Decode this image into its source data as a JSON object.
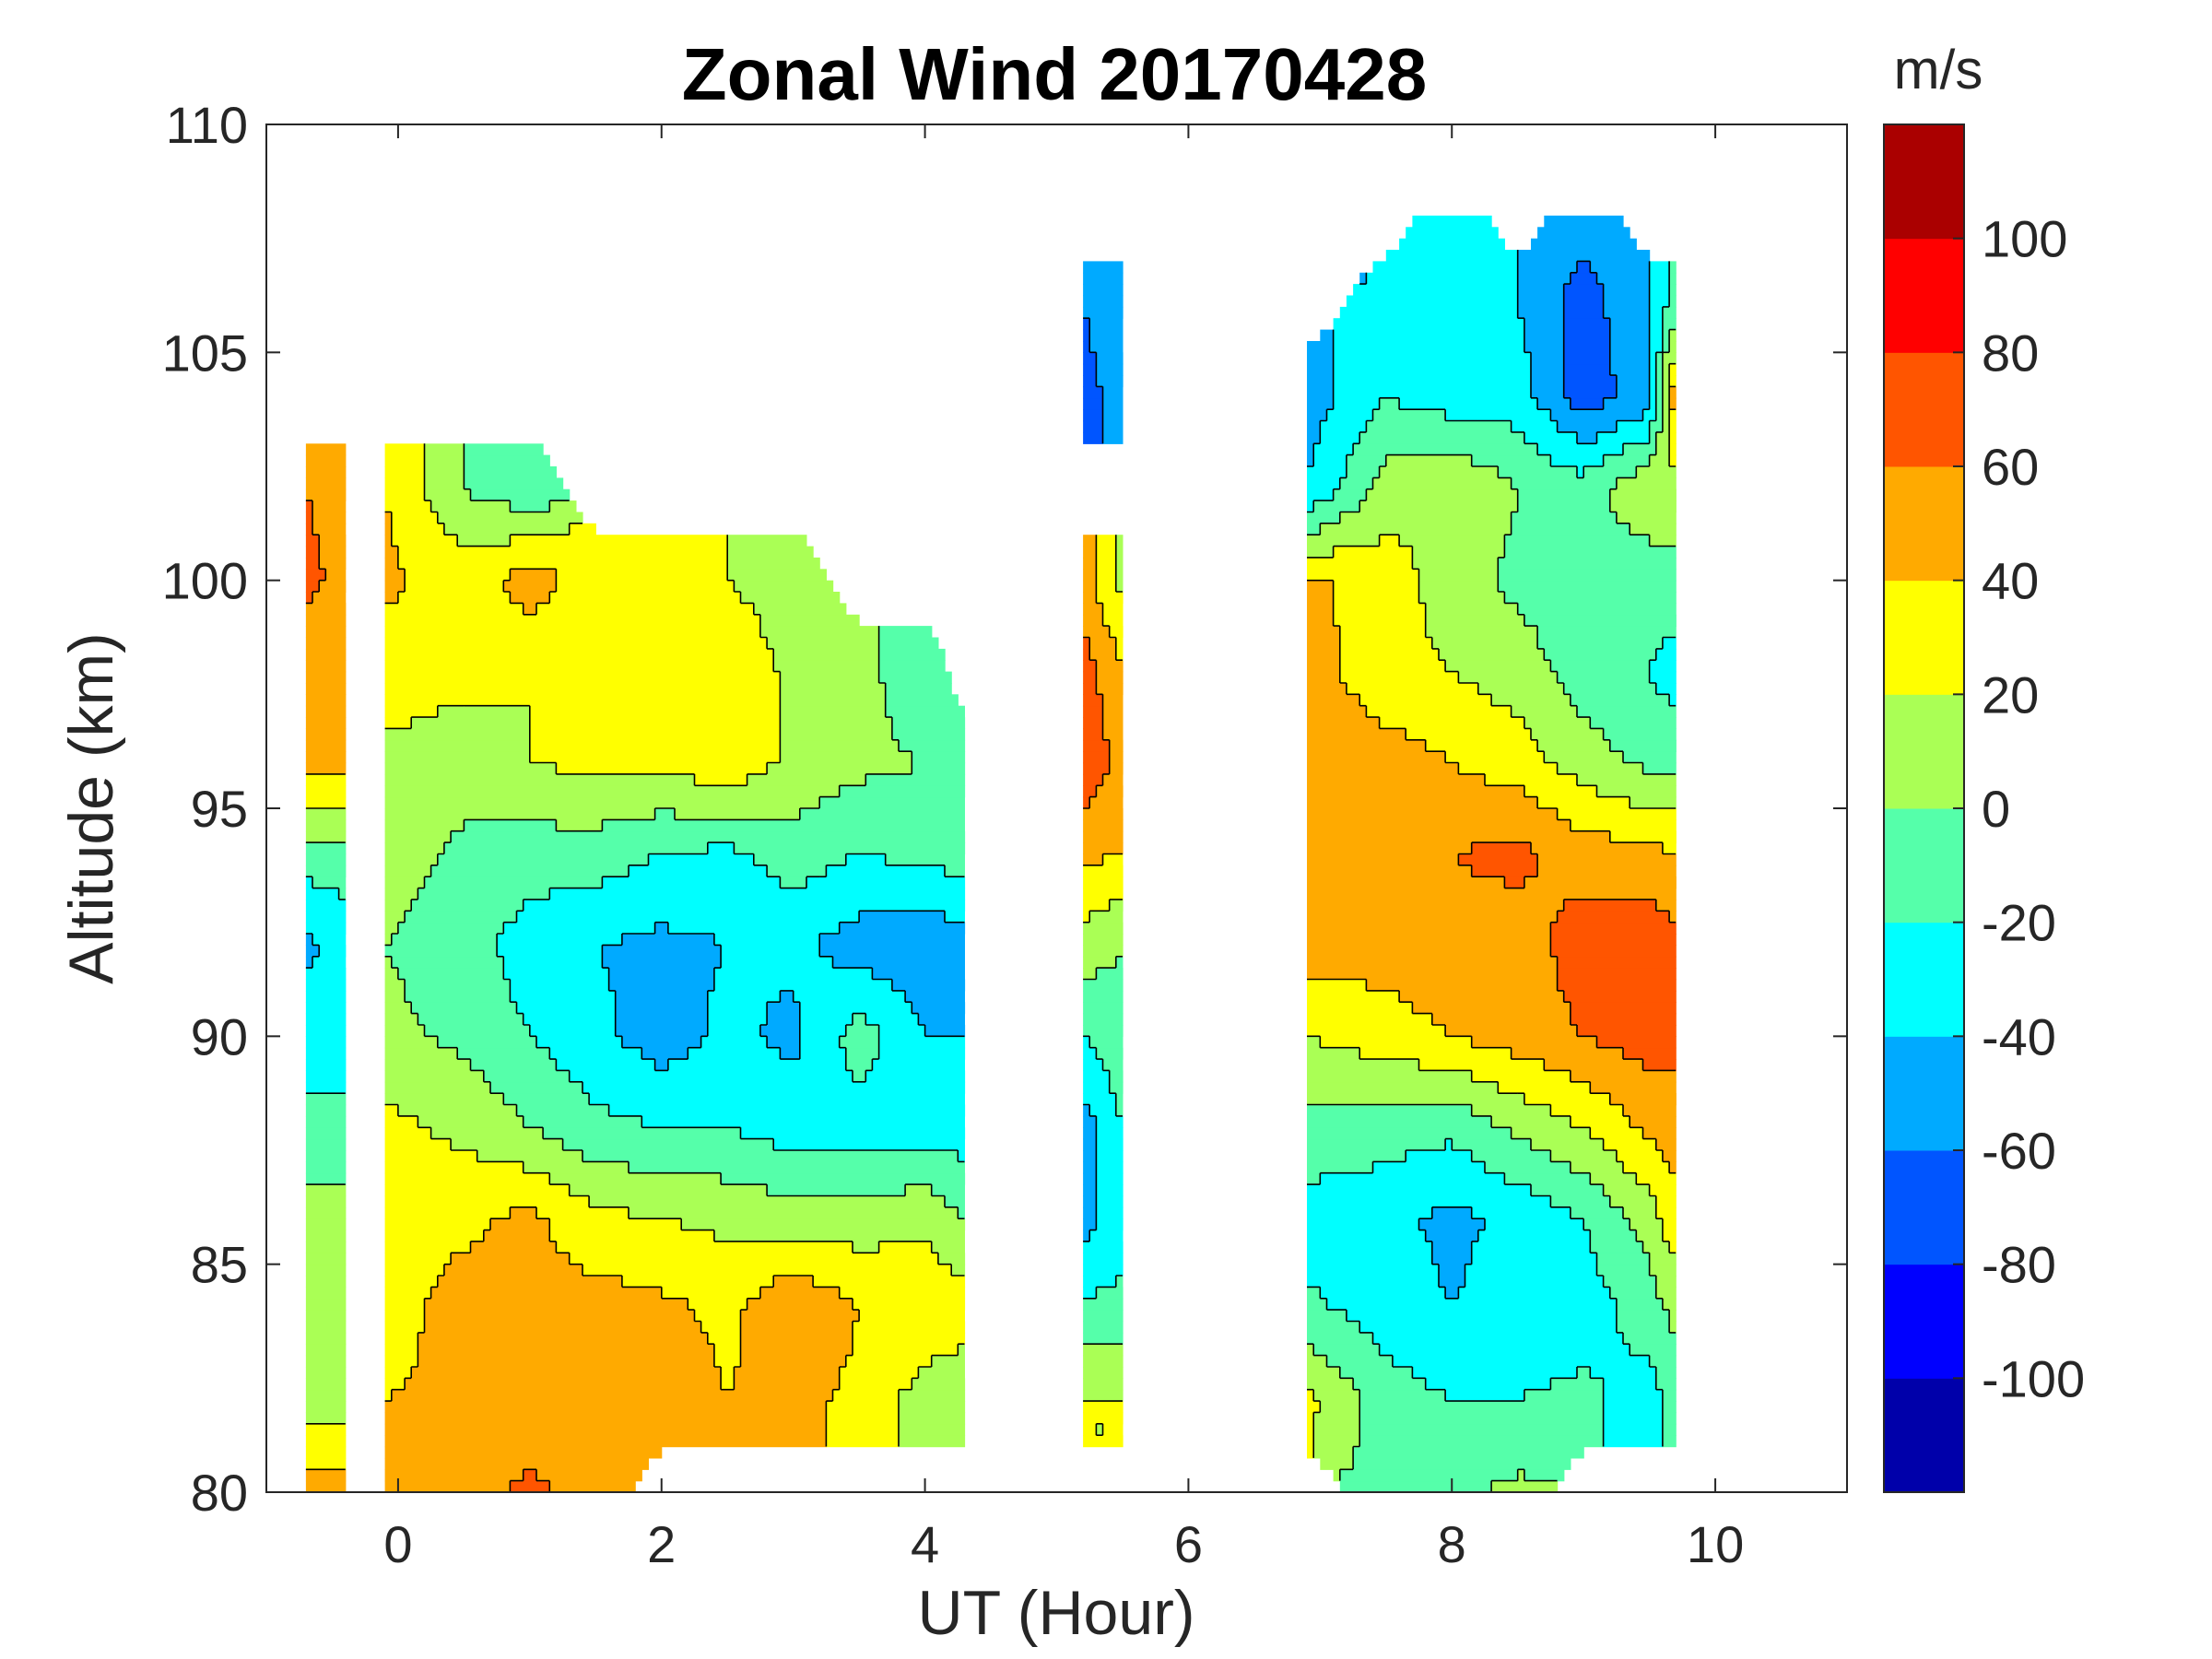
{
  "chart_data": {
    "type": "heatmap",
    "subtype": "filled-contour",
    "title": "Zonal Wind 20170428",
    "xlabel": "UT (Hour)",
    "ylabel": "Altitude (km)",
    "xlim": [
      -1,
      11
    ],
    "ylim": [
      80,
      110
    ],
    "xticks": [
      "0",
      "2",
      "4",
      "6",
      "8",
      "10"
    ],
    "yticks": [
      "80",
      "85",
      "90",
      "95",
      "100",
      "105",
      "110"
    ],
    "grid": false,
    "colorbar": {
      "label": "m/s",
      "levels": [
        -120,
        -100,
        -80,
        -60,
        -40,
        -20,
        0,
        20,
        40,
        60,
        80,
        100,
        120
      ],
      "tick_labels": [
        "-100",
        "-80",
        "-60",
        "-40",
        "-20",
        "0",
        "20",
        "40",
        "60",
        "80",
        "100"
      ],
      "colors": [
        "#0000AA",
        "#0000FF",
        "#0055FF",
        "#00AAFF",
        "#00FFFF",
        "#55FFAA",
        "#AAFF55",
        "#FFFF00",
        "#FFAA00",
        "#FF5500",
        "#FF0000",
        "#AA0000"
      ]
    },
    "altitudes": [
      80,
      82,
      84,
      86,
      88,
      90,
      92,
      94,
      96,
      98,
      100,
      102,
      104,
      106,
      108
    ],
    "segments": [
      {
        "x": [
          -0.7,
          -0.4
        ],
        "z": [
          [
            50,
            50
          ],
          [
            10,
            10
          ],
          [
            5,
            5
          ],
          [
            10,
            10
          ],
          [
            -15,
            -15
          ],
          [
            -30,
            -30
          ],
          [
            -45,
            -30
          ],
          [
            -10,
            -10
          ],
          [
            45,
            45
          ],
          [
            45,
            45
          ],
          [
            65,
            55
          ],
          [
            60,
            50
          ],
          [
            null,
            null
          ],
          [
            null,
            null
          ],
          [
            null,
            null
          ]
        ]
      },
      {
        "x": [
          -0.1,
          0.5,
          1,
          1.5,
          2,
          2.5,
          3,
          3.5,
          4,
          4.3
        ],
        "z": [
          [
            45,
            50,
            65,
            50,
            null,
            null,
            null,
            null,
            null,
            null
          ],
          [
            40,
            45,
            45,
            45,
            55,
            40,
            45,
            35,
            10,
            5
          ],
          [
            30,
            50,
            45,
            50,
            45,
            35,
            60,
            40,
            35,
            30
          ],
          [
            30,
            35,
            45,
            25,
            20,
            15,
            10,
            10,
            15,
            0
          ],
          [
            25,
            15,
            0,
            -15,
            -20,
            -20,
            -30,
            -30,
            -30,
            -30
          ],
          [
            5,
            -5,
            -20,
            -35,
            -50,
            -35,
            -45,
            -10,
            -40,
            -40
          ],
          [
            0,
            -10,
            -30,
            -40,
            -45,
            -40,
            -35,
            -50,
            -55,
            -50
          ],
          [
            10,
            -5,
            -10,
            -10,
            -20,
            -25,
            -10,
            -20,
            -15,
            -10
          ],
          [
            15,
            10,
            20,
            25,
            25,
            35,
            15,
            5,
            0,
            0
          ],
          [
            30,
            25,
            20,
            30,
            30,
            35,
            15,
            10,
            -20,
            null
          ],
          [
            45,
            30,
            50,
            30,
            25,
            20,
            10,
            null,
            null,
            null
          ],
          [
            40,
            0,
            -15,
            null,
            null,
            null,
            null,
            null,
            null,
            null
          ],
          [
            null,
            null,
            null,
            null,
            null,
            null,
            null,
            null,
            null,
            null
          ],
          [
            null,
            null,
            null,
            null,
            null,
            null,
            null,
            null,
            null,
            null
          ],
          [
            null,
            null,
            null,
            null,
            null,
            null,
            null,
            null,
            null,
            null
          ]
        ]
      },
      {
        "x": [
          5.2,
          5.5
        ],
        "z": [
          [
            null,
            null
          ],
          [
            20,
            20
          ],
          [
            -15,
            -15
          ],
          [
            -50,
            -25
          ],
          [
            -50,
            -20
          ],
          [
            -20,
            -5
          ],
          [
            10,
            0
          ],
          [
            45,
            40
          ],
          [
            80,
            50
          ],
          [
            70,
            40
          ],
          [
            50,
            15
          ],
          [
            null,
            null
          ],
          [
            -70,
            -50
          ],
          [
            -60,
            -40
          ],
          [
            null,
            null
          ]
        ]
      },
      {
        "x": [
          6.9,
          7.5,
          8,
          8.5,
          9,
          9.5,
          9.7
        ],
        "z": [
          [
            null,
            -5,
            -5,
            5,
            null,
            null,
            null
          ],
          [
            25,
            -10,
            -20,
            -20,
            -15,
            -30,
            -10
          ],
          [
            -15,
            -30,
            -40,
            -30,
            -30,
            -10,
            5
          ],
          [
            -30,
            -35,
            -45,
            -35,
            -20,
            10,
            35
          ],
          [
            -5,
            -10,
            -15,
            5,
            20,
            45,
            50
          ],
          [
            20,
            30,
            40,
            50,
            60,
            70,
            65
          ],
          [
            50,
            50,
            55,
            50,
            70,
            75,
            65
          ],
          [
            60,
            55,
            60,
            65,
            50,
            45,
            40
          ],
          [
            60,
            50,
            40,
            30,
            10,
            -5,
            -5
          ],
          [
            50,
            25,
            20,
            10,
            -10,
            -20,
            -30
          ],
          [
            45,
            30,
            10,
            -5,
            -10,
            -15,
            -5
          ],
          [
            -40,
            10,
            20,
            0,
            -10,
            20,
            10
          ],
          [
            -50,
            -20,
            -30,
            -30,
            -70,
            -50,
            60
          ],
          [
            null,
            -40,
            -20,
            -40,
            -70,
            -40,
            -10
          ],
          [
            null,
            null,
            -30,
            null,
            -50,
            null,
            null
          ]
        ]
      }
    ]
  }
}
